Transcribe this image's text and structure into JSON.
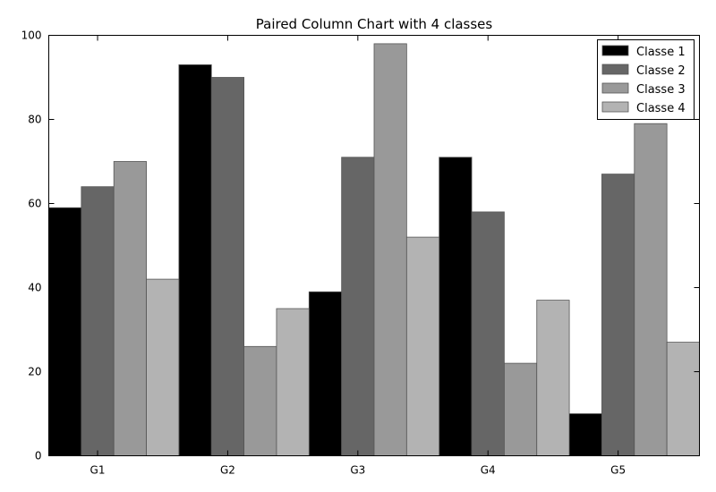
{
  "chart_data": {
    "type": "bar",
    "title": "Paired Column Chart with 4 classes",
    "xlabel": "",
    "ylabel": "",
    "categories": [
      "G1",
      "G2",
      "G3",
      "G4",
      "G5"
    ],
    "ylim": [
      0,
      100
    ],
    "yticks": [
      0,
      20,
      40,
      60,
      80,
      100
    ],
    "grid": false,
    "legend_position": "top-right",
    "series": [
      {
        "name": "Classe 1",
        "color": "#000000",
        "values": [
          59,
          93,
          39,
          71,
          10
        ]
      },
      {
        "name": "Classe 2",
        "color": "#666666",
        "values": [
          64,
          90,
          71,
          58,
          67
        ]
      },
      {
        "name": "Classe 3",
        "color": "#999999",
        "values": [
          70,
          26,
          98,
          22,
          79
        ]
      },
      {
        "name": "Classe 4",
        "color": "#b3b3b3",
        "values": [
          42,
          35,
          52,
          37,
          27
        ]
      }
    ]
  }
}
